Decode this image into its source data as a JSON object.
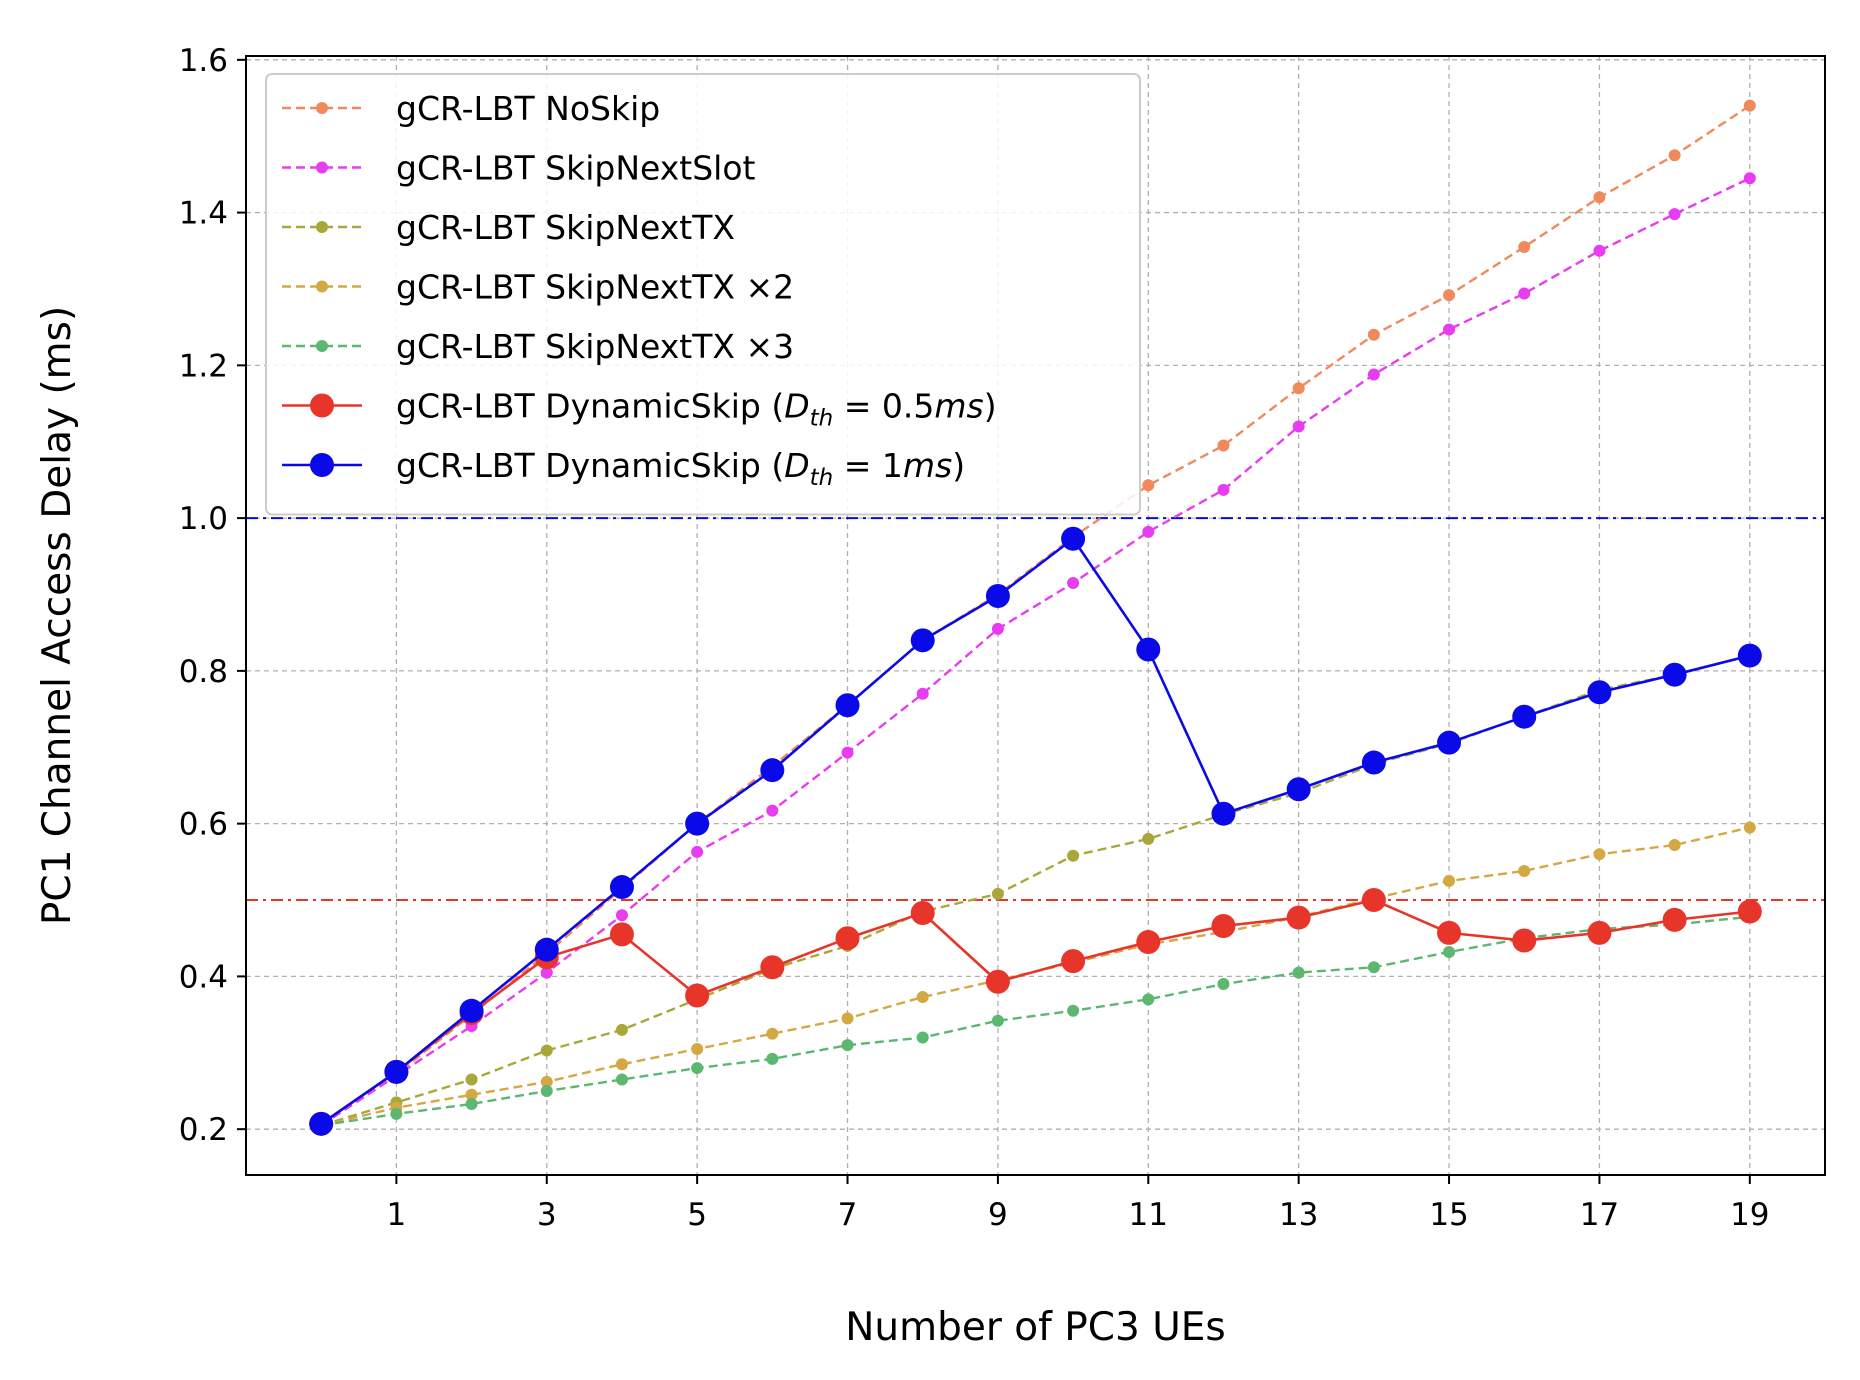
{
  "chart_data": {
    "type": "line",
    "title": "",
    "xlabel": "Number of PC3 UEs",
    "ylabel": "PC1 Channel Access Delay (ms)",
    "xlim": [
      -1,
      20
    ],
    "ylim": [
      0.14,
      1.605
    ],
    "xticks": [
      1,
      3,
      5,
      7,
      9,
      11,
      13,
      15,
      17,
      19
    ],
    "yticks": [
      0.2,
      0.4,
      0.6,
      0.8,
      1.0,
      1.2,
      1.4,
      1.6
    ],
    "ytick_labels": [
      "0.2",
      "0.4",
      "0.6",
      "0.8",
      "1.0",
      "1.2",
      "1.4",
      "1.6"
    ],
    "grid": true,
    "legend_position": "upper-left",
    "x": [
      0,
      1,
      2,
      3,
      4,
      5,
      6,
      7,
      8,
      9,
      10,
      11,
      12,
      13,
      14,
      15,
      16,
      17,
      18,
      19
    ],
    "series": [
      {
        "name": "gCR-LBT NoSkip",
        "color": "#f08a5d",
        "style": "dashed",
        "marker": "small",
        "values": [
          0.205,
          0.272,
          0.35,
          0.43,
          0.515,
          0.6,
          0.675,
          0.755,
          0.84,
          0.9,
          0.975,
          1.043,
          1.095,
          1.17,
          1.24,
          1.292,
          1.355,
          1.42,
          1.475,
          1.54
        ]
      },
      {
        "name": "gCR-LBT SkipNextSlot",
        "color": "#e83cf0",
        "style": "dashed",
        "marker": "small",
        "values": [
          0.205,
          0.27,
          0.335,
          0.405,
          0.48,
          0.563,
          0.617,
          0.693,
          0.77,
          0.855,
          0.915,
          0.982,
          1.037,
          1.12,
          1.188,
          1.247,
          1.294,
          1.35,
          1.398,
          1.445
        ]
      },
      {
        "name": "gCR-LBT SkipNextTX",
        "color": "#a8a83a",
        "style": "dashed",
        "marker": "small",
        "values": [
          0.205,
          0.235,
          0.265,
          0.303,
          0.33,
          0.37,
          0.41,
          0.44,
          0.485,
          0.508,
          0.558,
          0.58,
          0.612,
          0.64,
          0.678,
          0.705,
          0.74,
          0.775,
          0.795,
          0.82
        ]
      },
      {
        "name": "gCR-LBT SkipNextTX ×2",
        "color": "#d4a843",
        "style": "dashed",
        "marker": "small",
        "values": [
          0.205,
          0.228,
          0.245,
          0.262,
          0.285,
          0.305,
          0.325,
          0.345,
          0.373,
          0.395,
          0.418,
          0.442,
          0.458,
          0.478,
          0.502,
          0.525,
          0.538,
          0.56,
          0.572,
          0.595
        ]
      },
      {
        "name": "gCR-LBT SkipNextTX ×3",
        "color": "#5cb870",
        "style": "dashed",
        "marker": "small",
        "values": [
          0.205,
          0.22,
          0.233,
          0.25,
          0.265,
          0.28,
          0.292,
          0.31,
          0.32,
          0.342,
          0.355,
          0.37,
          0.39,
          0.405,
          0.412,
          0.432,
          0.45,
          0.462,
          0.468,
          0.478
        ]
      },
      {
        "name": "gCR-LBT DynamicSkip",
        "label_suffix": "(Dth = 0.5ms)",
        "color": "#e8352a",
        "style": "solid",
        "marker": "large",
        "values": [
          0.207,
          0.275,
          0.352,
          0.425,
          0.455,
          0.375,
          0.412,
          0.45,
          0.483,
          0.393,
          0.42,
          0.445,
          0.466,
          0.477,
          0.5,
          0.457,
          0.447,
          0.457,
          0.474,
          0.485
        ]
      },
      {
        "name": "gCR-LBT DynamicSkip",
        "label_suffix": "(Dth = 1ms)",
        "color": "#0a0ae8",
        "style": "solid",
        "marker": "large",
        "values": [
          0.207,
          0.275,
          0.355,
          0.435,
          0.517,
          0.6,
          0.67,
          0.755,
          0.84,
          0.898,
          0.973,
          0.828,
          0.613,
          0.645,
          0.68,
          0.706,
          0.74,
          0.772,
          0.795,
          0.82
        ]
      }
    ],
    "reference_lines": [
      {
        "y": 1.0,
        "color": "#0a0ae8",
        "style": "dashdot"
      },
      {
        "y": 0.5,
        "color": "#e8352a",
        "style": "dashdot"
      }
    ],
    "legend": {
      "entries": [
        {
          "name": "gCR-LBT NoSkip"
        },
        {
          "name": "gCR-LBT SkipNextSlot"
        },
        {
          "name": "gCR-LBT SkipNextTX"
        },
        {
          "name": "gCR-LBT SkipNextTX ×2"
        },
        {
          "name": "gCR-LBT SkipNextTX ×3"
        },
        {
          "name": "gCR-LBT DynamicSkip (",
          "math_base": "D",
          "math_sub": "th",
          "math_rest": " = 0.5",
          "math_unit": "ms",
          "close": ")"
        },
        {
          "name": "gCR-LBT DynamicSkip (",
          "math_base": "D",
          "math_sub": "th",
          "math_rest": " = 1",
          "math_unit": "ms",
          "close": ")"
        }
      ]
    }
  }
}
